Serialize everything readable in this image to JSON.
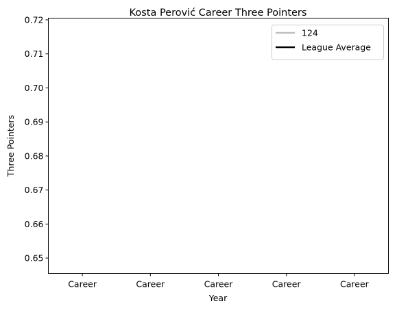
{
  "chart_data": {
    "type": "line",
    "title": "Kosta Perović Career Three Pointers",
    "xlabel": "Year",
    "ylabel": "Three Pointers",
    "categories": [
      "Career",
      "Career",
      "Career",
      "Career",
      "Career"
    ],
    "ylim": [
      0.6455,
      0.7205
    ],
    "yticks": [
      0.65,
      0.66,
      0.67,
      0.68,
      0.69,
      0.7,
      0.71,
      0.72
    ],
    "series": [
      {
        "name": "124",
        "color": "#c0c0c0",
        "values": [
          null,
          null,
          null,
          null,
          null
        ]
      },
      {
        "name": "League Average",
        "color": "#000000",
        "values": [
          null,
          null,
          null,
          null,
          null
        ]
      }
    ],
    "grid": false,
    "legend": "top-right"
  }
}
